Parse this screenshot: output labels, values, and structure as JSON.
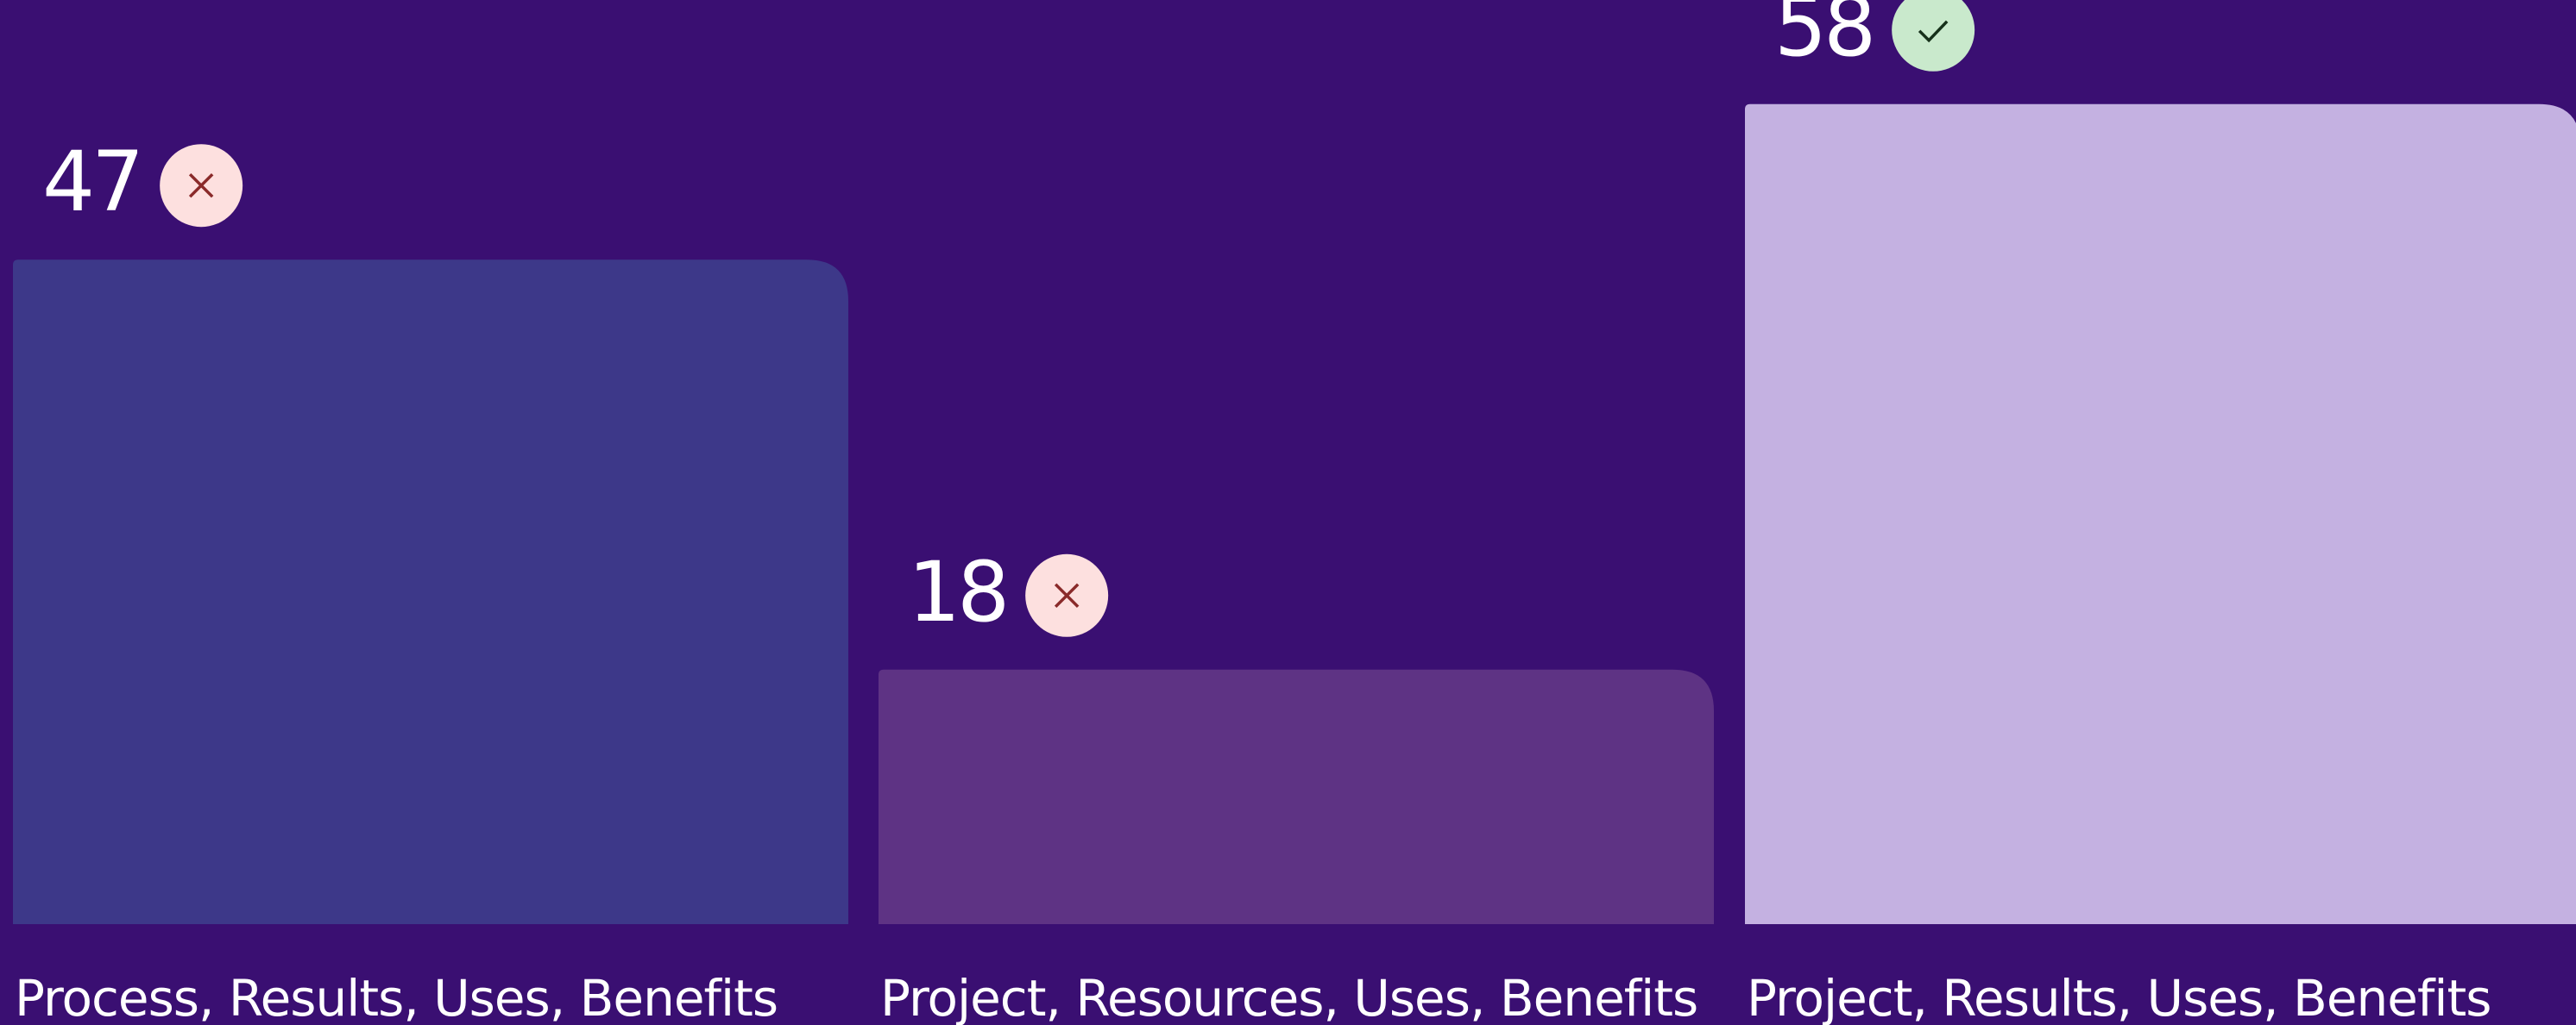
{
  "chart_data": {
    "type": "bar",
    "categories": [
      "Process, Results, Uses, Benefits",
      "Project, Resources, Uses, Benefits",
      "Project, Results, Uses, Benefits"
    ],
    "values": [
      47,
      18,
      58
    ],
    "colors": [
      "#3d3889",
      "#5e3384",
      "#c4b1e1"
    ]
  }
}
